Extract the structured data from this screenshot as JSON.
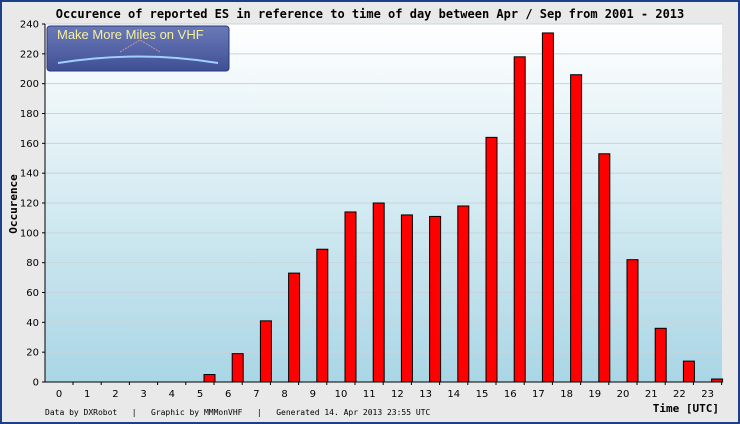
{
  "footer": {
    "left": "Data by DXRobot   |   Graphic by MMMonVHF   |   Generated 14. Apr 2013 23:55 UTC"
  },
  "logo": {
    "text": "Make More Miles on VHF"
  },
  "colors": {
    "bar_fill": "#ff0000",
    "bar_stroke": "#000000",
    "plot_top": "#ffffff",
    "plot_bottom": "#a9d6e5",
    "frame": "#1c3f8a",
    "logo_bg": "#5566a8"
  },
  "chart_data": {
    "type": "bar",
    "title": "Occurence of reported ES in reference to time of day between Apr / Sep from 2001 - 2013",
    "xlabel": "Time [UTC]",
    "ylabel": "Occurence",
    "categories": [
      "0",
      "1",
      "2",
      "3",
      "4",
      "5",
      "6",
      "7",
      "8",
      "9",
      "10",
      "11",
      "12",
      "13",
      "14",
      "15",
      "16",
      "17",
      "18",
      "19",
      "20",
      "21",
      "22",
      "23"
    ],
    "values": [
      0,
      0,
      0,
      0,
      0,
      5,
      19,
      41,
      73,
      89,
      114,
      120,
      112,
      111,
      118,
      164,
      218,
      234,
      206,
      153,
      82,
      36,
      14,
      2
    ],
    "ylim": [
      0,
      240
    ],
    "yticks": [
      0,
      20,
      40,
      60,
      80,
      100,
      120,
      140,
      160,
      180,
      200,
      220,
      240
    ],
    "grid": true,
    "legend": "none"
  }
}
